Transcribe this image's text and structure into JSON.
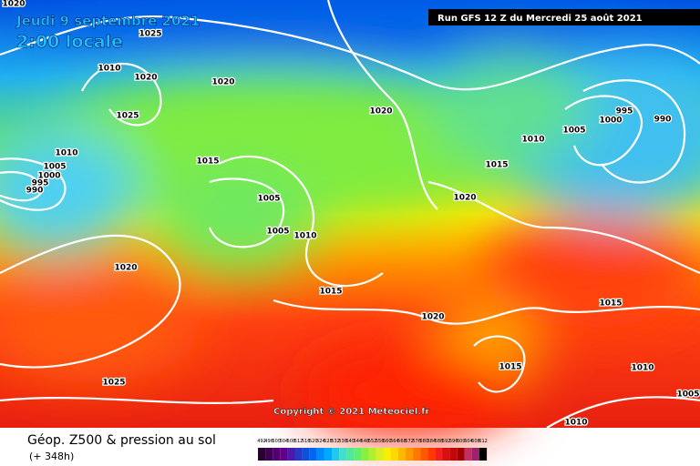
{
  "header": {
    "date": "Jeudi 9 septembre 2021",
    "time": "2:00 locale",
    "run": "Run GFS 12 Z du Mercredi 25 août 2021"
  },
  "isobar_labels": [
    "1020",
    "1025",
    "1010",
    "1020",
    "1020",
    "1025",
    "1020",
    "1010",
    "1015",
    "1005",
    "1000",
    "995",
    "990",
    "1005",
    "1005",
    "1010",
    "1020",
    "1015",
    "1020",
    "1025",
    "1015",
    "1020",
    "1010",
    "1005",
    "1000",
    "995",
    "990",
    "1015",
    "1015",
    "1010",
    "1005",
    "1010"
  ],
  "copyright": "Copyright © 2021 Meteociel.fr",
  "footer": {
    "title": "Géop. Z500 & pression au sol",
    "lead": "(+ 348h)"
  },
  "scale": {
    "values": [
      492,
      496,
      500,
      504,
      508,
      512,
      516,
      520,
      524,
      528,
      532,
      536,
      540,
      544,
      548,
      552,
      556,
      560,
      564,
      568,
      572,
      576,
      580,
      584,
      588,
      592,
      596,
      600,
      604,
      608,
      612
    ],
    "colors": [
      "#2a0033",
      "#3d0052",
      "#520070",
      "#62008c",
      "#4a1aa8",
      "#2838c0",
      "#1050d8",
      "#0068f0",
      "#0088ff",
      "#00a8ff",
      "#20c8f0",
      "#40e0d0",
      "#50e8a0",
      "#60f070",
      "#88f040",
      "#b0f030",
      "#d8f020",
      "#f8f000",
      "#ffd800",
      "#ffb800",
      "#ff9800",
      "#ff7800",
      "#ff5800",
      "#ff3800",
      "#f02020",
      "#d81010",
      "#c00808",
      "#a00000",
      "#c03060",
      "#a02070",
      "#000000"
    ]
  }
}
